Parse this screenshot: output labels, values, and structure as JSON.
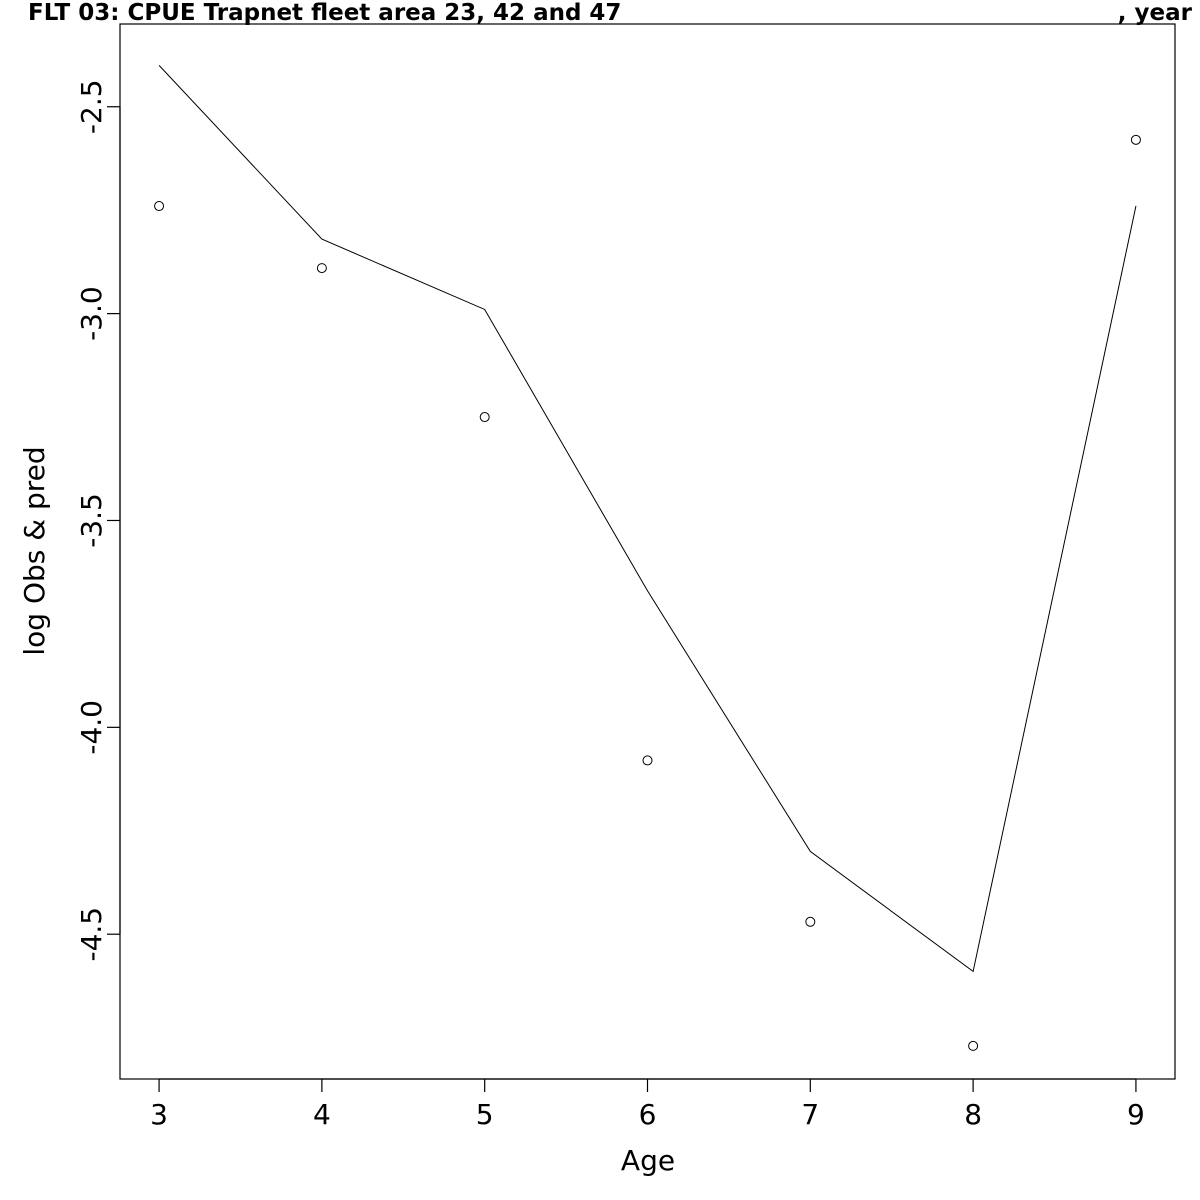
{
  "chart_data": {
    "type": "line",
    "title_left": "FLT 03: CPUE Trapnet fleet area 23, 42 and 47",
    "title_right": ", year",
    "xlabel": "Age",
    "ylabel": "log Obs & pred",
    "x": [
      3,
      4,
      5,
      6,
      7,
      8,
      9
    ],
    "xlim": [
      2.76,
      9.24
    ],
    "ylim": [
      -4.85,
      -2.3
    ],
    "x_ticks": [
      3,
      4,
      5,
      6,
      7,
      8,
      9
    ],
    "y_ticks": [
      -2.5,
      -3.0,
      -3.5,
      -4.0,
      -4.5
    ],
    "y_tick_labels": [
      "-2.5",
      "-3.0",
      "-3.5",
      "-4.0",
      "-4.5"
    ],
    "series": [
      {
        "style": "line",
        "values": [
          -2.4,
          -2.82,
          -2.99,
          -3.67,
          -4.3,
          -4.59,
          -2.74
        ]
      },
      {
        "style": "points",
        "values": [
          -2.74,
          -2.89,
          -3.25,
          -4.08,
          -4.47,
          -4.77,
          -2.58
        ]
      }
    ],
    "grid": false,
    "legend": "none"
  }
}
